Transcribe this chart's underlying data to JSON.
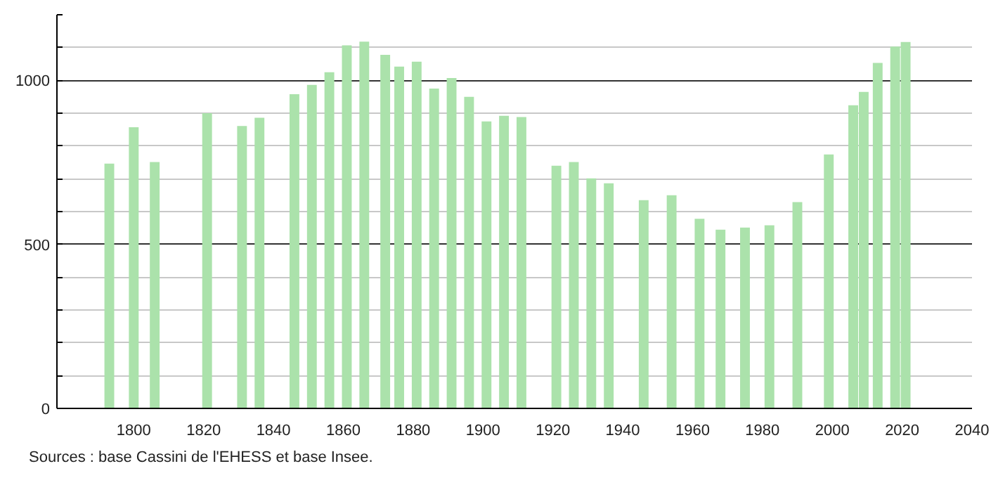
{
  "chart_data": {
    "type": "bar",
    "x": [
      1793,
      1800,
      1806,
      1821,
      1831,
      1836,
      1846,
      1851,
      1856,
      1861,
      1866,
      1872,
      1876,
      1881,
      1886,
      1891,
      1896,
      1901,
      1906,
      1911,
      1921,
      1926,
      1931,
      1936,
      1946,
      1954,
      1962,
      1968,
      1975,
      1982,
      1990,
      1999,
      2006,
      2009,
      2013,
      2018,
      2021
    ],
    "values": [
      746,
      857,
      751,
      900,
      861,
      886,
      958,
      986,
      1025,
      1107,
      1118,
      1078,
      1042,
      1057,
      975,
      1007,
      950,
      875,
      892,
      888,
      740,
      751,
      701,
      686,
      635,
      650,
      578,
      545,
      551,
      558,
      629,
      774,
      924,
      965,
      1053,
      1103,
      1117
    ],
    "color": "#abe2ab",
    "xlim": [
      1778,
      2040
    ],
    "xticks": [
      1800,
      1820,
      1840,
      1860,
      1880,
      1900,
      1920,
      1940,
      1960,
      1980,
      2000,
      2020,
      2040
    ],
    "ylim": [
      0,
      1200
    ],
    "yticks": [
      0,
      {
        "value": 100,
        "label": null
      },
      {
        "value": 200,
        "label": null
      },
      {
        "value": 300,
        "label": null
      },
      {
        "value": 400,
        "label": null
      },
      500,
      {
        "value": 600,
        "label": null
      },
      {
        "value": 700,
        "label": null
      },
      {
        "value": 800,
        "label": null
      },
      {
        "value": 900,
        "label": null
      },
      1000,
      {
        "value": 1100,
        "label": null
      },
      {
        "value": 1200,
        "label": null
      }
    ],
    "grid": "y",
    "annotations": [
      "Sources : base Cassini de l'EHESS et base Insee."
    ]
  }
}
